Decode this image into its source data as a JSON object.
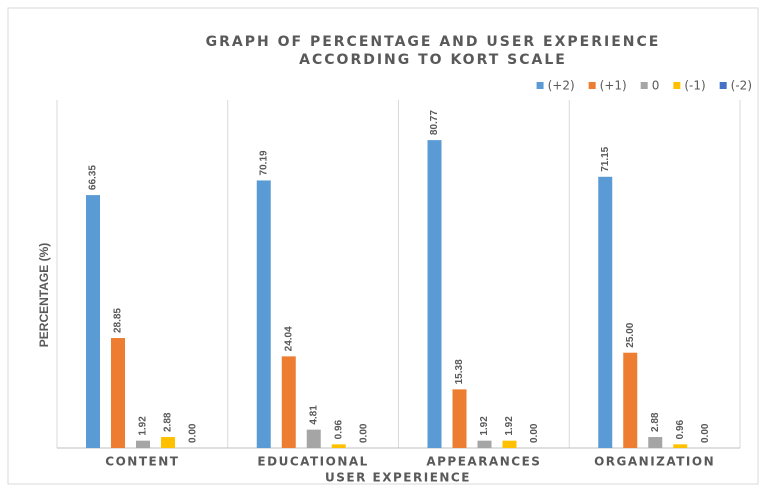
{
  "chart_data": {
    "type": "bar",
    "title": "GRAPH OF PERCENTAGE AND USER EXPERIENCE",
    "subtitle": "ACCORDING TO KORT SCALE",
    "x_label": "USER EXPERIENCE",
    "y_label": "PERCENTAGE (%)",
    "categories": [
      "CONTENT",
      "EDUCATIONAL",
      "APPEARANCES",
      "ORGANIZATION"
    ],
    "ylim": [
      0,
      85
    ],
    "legend": "top-right",
    "series": [
      {
        "name": "(+2)",
        "color": "#5b9bd5",
        "values": [
          66.35,
          70.19,
          80.77,
          71.15
        ],
        "value_labels": [
          "66.35",
          "70.19",
          "80.77",
          "71.15"
        ]
      },
      {
        "name": "(+1)",
        "color": "#ed7d31",
        "values": [
          28.85,
          24.04,
          15.38,
          25
        ],
        "value_labels": [
          "28.85",
          "24.04",
          "15.38",
          "25.00"
        ]
      },
      {
        "name": "0",
        "color": "#a5a5a5",
        "values": [
          1.92,
          4.81,
          1.92,
          2.88
        ],
        "value_labels": [
          "1.92",
          "4.81",
          "1.92",
          "2.88"
        ]
      },
      {
        "name": "(-1)",
        "color": "#ffc000",
        "values": [
          2.88,
          0.96,
          1.92,
          0.96
        ],
        "value_labels": [
          "2.88",
          "0.96",
          "1.92",
          "0.96"
        ]
      },
      {
        "name": "(-2)",
        "color": "#4472c4",
        "values": [
          0,
          0,
          0,
          0
        ],
        "value_labels": [
          "0.00",
          "0.00",
          "0.00",
          "0.00"
        ]
      }
    ]
  }
}
